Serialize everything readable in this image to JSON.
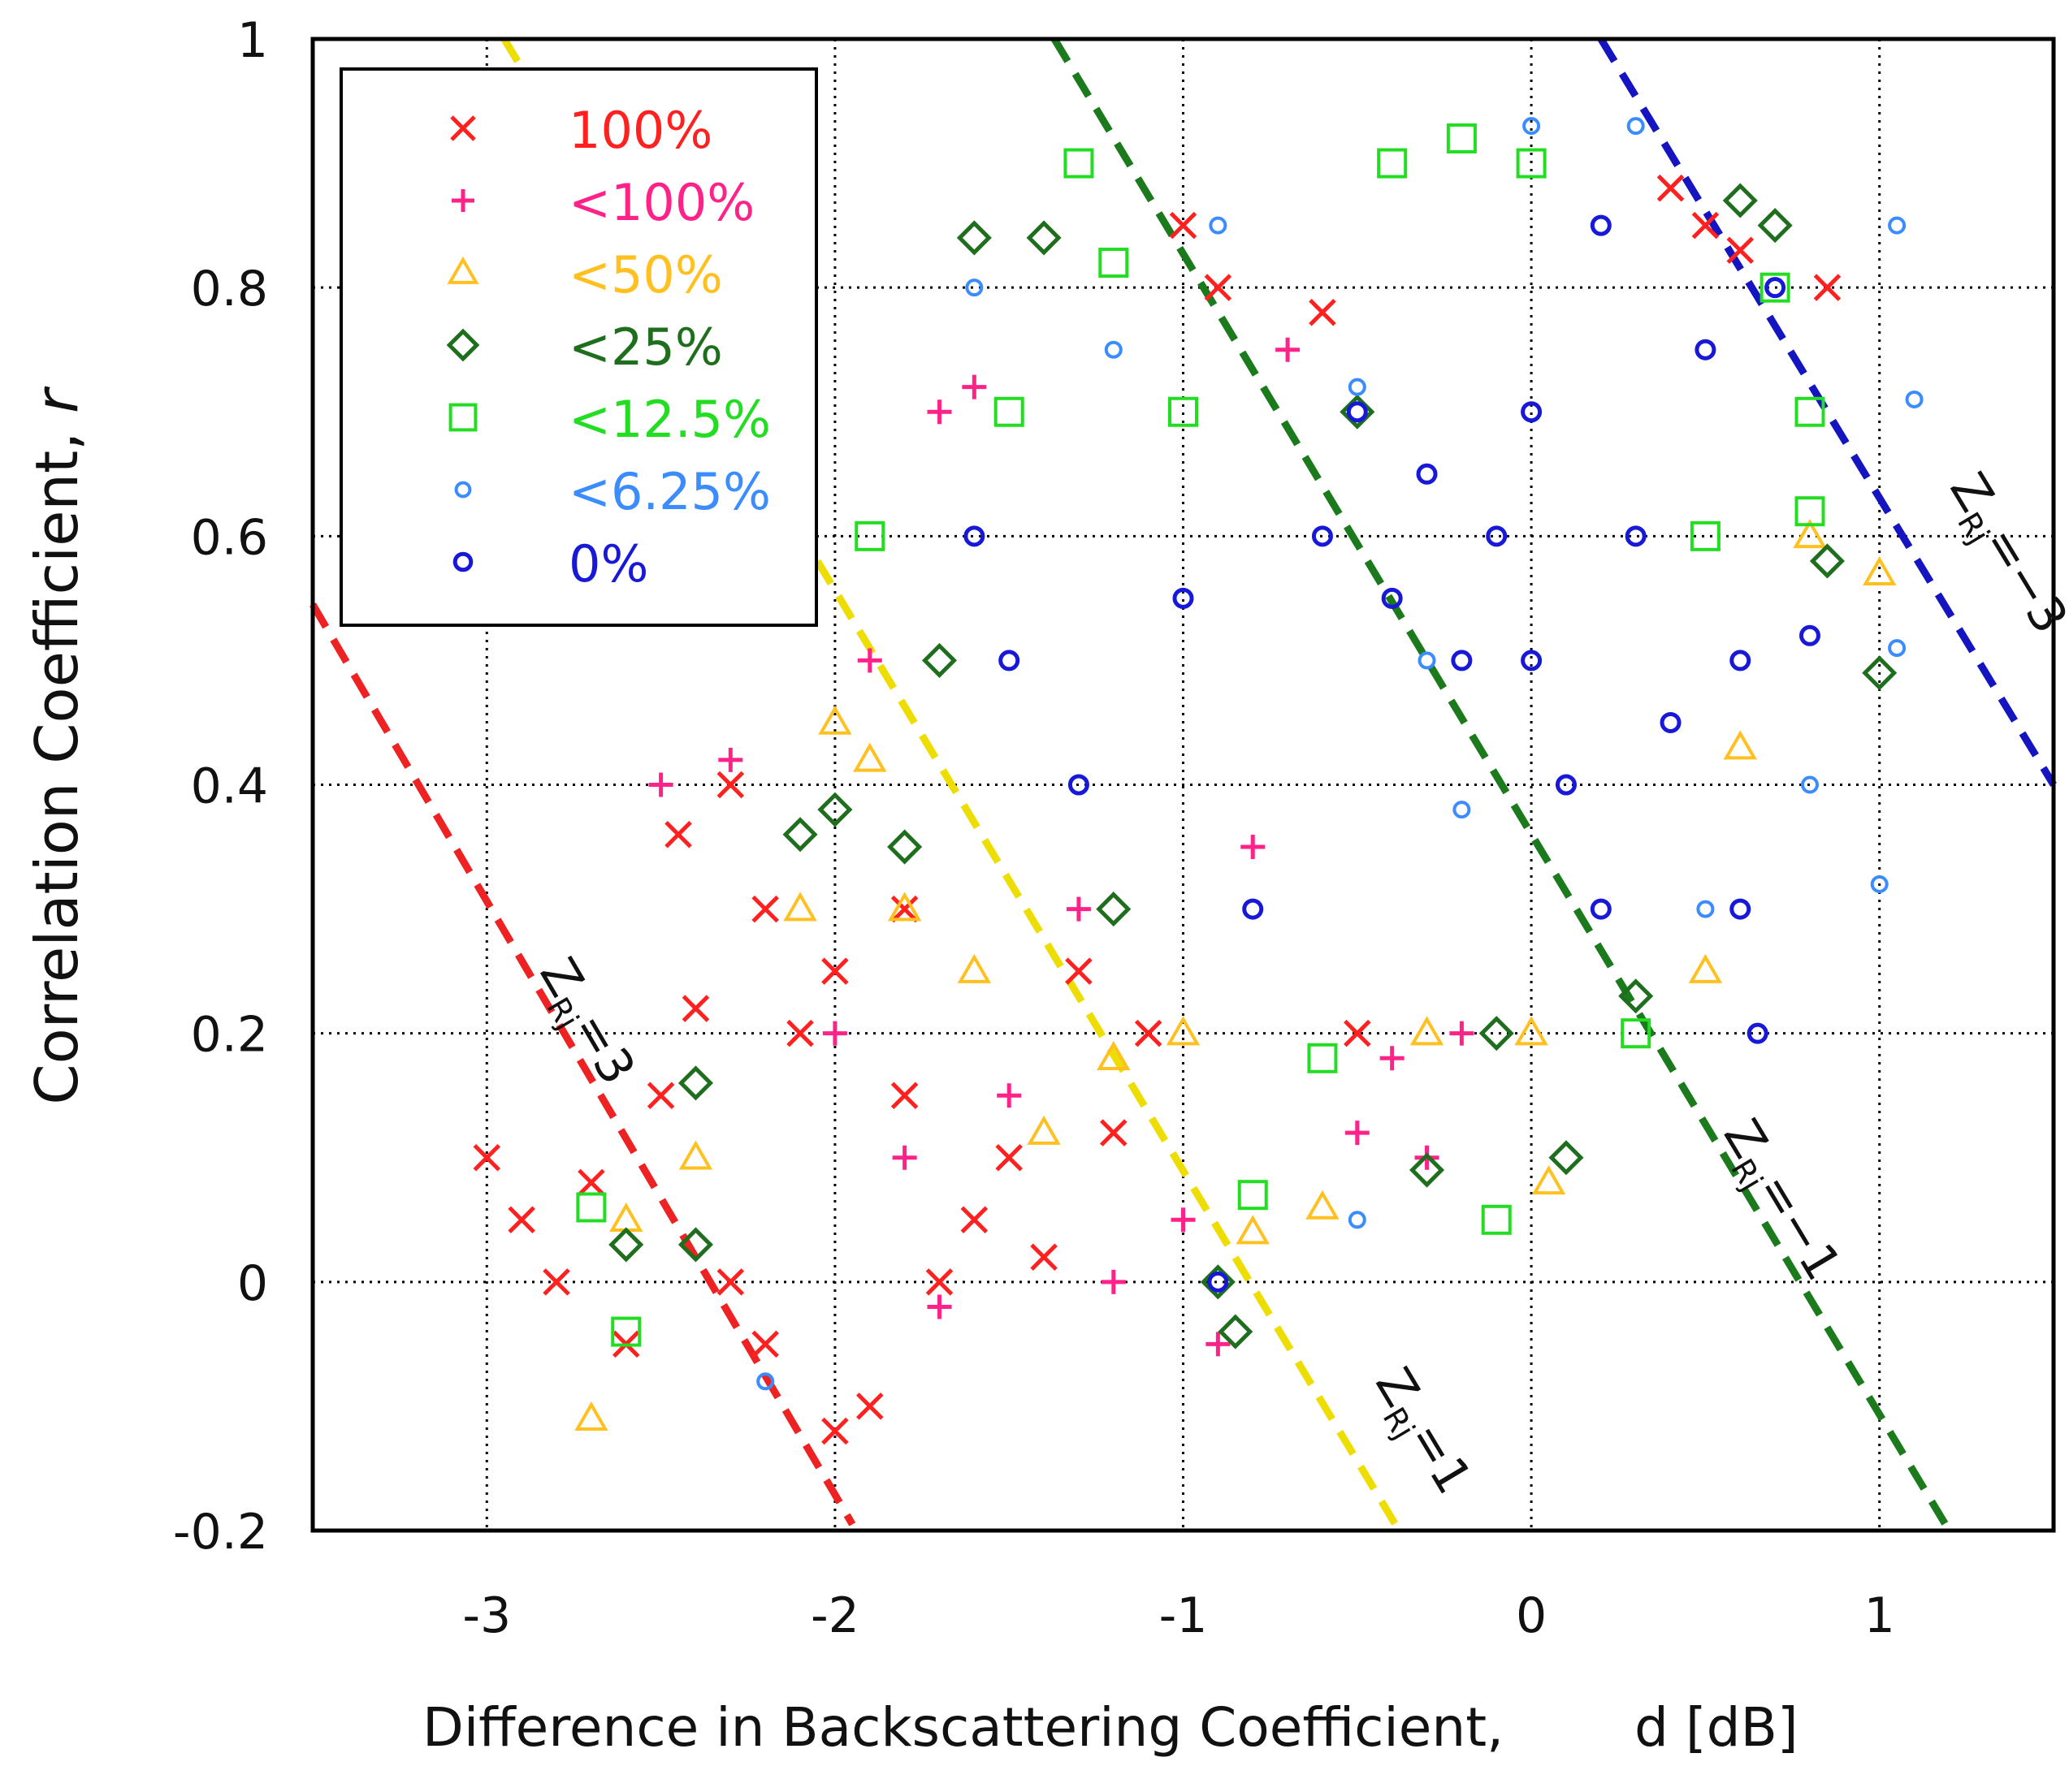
{
  "chart_data": {
    "type": "scatter",
    "title": "",
    "xlabel": "Difference in Backscattering Coefficient,",
    "xlabel_unit": "d [dB]",
    "ylabel": "Correlation Coefficient, ",
    "ylabel_symbol": "r",
    "xlim": [
      -3.5,
      1.5
    ],
    "ylim": [
      -0.2,
      1.0
    ],
    "x_ticks": [
      -3,
      -2,
      -1,
      0,
      1
    ],
    "x_tick_labels": [
      "-3",
      "-2",
      "-1",
      "0",
      "1"
    ],
    "y_ticks": [
      -0.2,
      0,
      0.2,
      0.4,
      0.6,
      0.8,
      1.0
    ],
    "y_tick_labels": [
      "-0.2",
      "0",
      "0.2",
      "0.4",
      "0.6",
      "0.8",
      "1"
    ],
    "grid": true,
    "legend_position": "top-left",
    "series": [
      {
        "name": "100%",
        "marker": "x",
        "color": "#ff2020",
        "points": [
          [
            -3.0,
            0.1
          ],
          [
            -2.9,
            0.05
          ],
          [
            -2.8,
            0.0
          ],
          [
            -2.7,
            0.08
          ],
          [
            -2.6,
            -0.05
          ],
          [
            -2.5,
            0.15
          ],
          [
            -2.45,
            0.36
          ],
          [
            -2.4,
            0.22
          ],
          [
            -2.3,
            0.0
          ],
          [
            -2.3,
            0.4
          ],
          [
            -2.2,
            0.3
          ],
          [
            -2.2,
            -0.05
          ],
          [
            -2.1,
            0.2
          ],
          [
            -2.0,
            -0.12
          ],
          [
            -2.0,
            0.25
          ],
          [
            -1.9,
            -0.1
          ],
          [
            -1.8,
            0.15
          ],
          [
            -1.8,
            0.3
          ],
          [
            -1.7,
            0.0
          ],
          [
            -1.6,
            0.05
          ],
          [
            -1.5,
            0.1
          ],
          [
            -1.4,
            0.02
          ],
          [
            -1.3,
            0.25
          ],
          [
            -1.2,
            0.12
          ],
          [
            -1.1,
            0.2
          ],
          [
            -1.0,
            0.85
          ],
          [
            -0.9,
            0.8
          ],
          [
            -0.6,
            0.78
          ],
          [
            -0.5,
            0.2
          ],
          [
            0.4,
            0.88
          ],
          [
            0.5,
            0.85
          ],
          [
            0.6,
            0.83
          ],
          [
            0.85,
            0.8
          ]
        ]
      },
      {
        "name": "<100%",
        "marker": "+",
        "color": "#ff2288",
        "points": [
          [
            -2.5,
            0.4
          ],
          [
            -2.3,
            0.42
          ],
          [
            -2.0,
            0.2
          ],
          [
            -1.9,
            0.5
          ],
          [
            -1.8,
            0.1
          ],
          [
            -1.7,
            -0.02
          ],
          [
            -1.7,
            0.7
          ],
          [
            -1.6,
            0.72
          ],
          [
            -1.5,
            0.15
          ],
          [
            -1.3,
            0.3
          ],
          [
            -1.2,
            0.0
          ],
          [
            -1.0,
            0.05
          ],
          [
            -0.9,
            -0.05
          ],
          [
            -0.8,
            0.35
          ],
          [
            -0.7,
            0.75
          ],
          [
            -0.5,
            0.12
          ],
          [
            -0.4,
            0.18
          ],
          [
            -0.3,
            0.1
          ],
          [
            -0.2,
            0.2
          ]
        ]
      },
      {
        "name": "<50%",
        "marker": "triangle",
        "color": "#ffc020",
        "points": [
          [
            -2.7,
            -0.11
          ],
          [
            -2.6,
            0.05
          ],
          [
            -2.4,
            0.1
          ],
          [
            -2.1,
            0.3
          ],
          [
            -2.0,
            0.45
          ],
          [
            -1.9,
            0.42
          ],
          [
            -1.8,
            0.3
          ],
          [
            -1.6,
            0.25
          ],
          [
            -1.4,
            0.12
          ],
          [
            -1.2,
            0.18
          ],
          [
            -1.0,
            0.2
          ],
          [
            -0.8,
            0.04
          ],
          [
            -0.6,
            0.06
          ],
          [
            -0.3,
            0.2
          ],
          [
            0.0,
            0.2
          ],
          [
            0.05,
            0.08
          ],
          [
            0.5,
            0.25
          ],
          [
            0.6,
            0.43
          ],
          [
            0.8,
            0.6
          ],
          [
            1.0,
            0.57
          ]
        ]
      },
      {
        "name": "<25%",
        "marker": "diamond",
        "color": "#1e6e1e",
        "points": [
          [
            -2.6,
            0.03
          ],
          [
            -2.4,
            0.03
          ],
          [
            -2.4,
            0.16
          ],
          [
            -2.1,
            0.36
          ],
          [
            -2.0,
            0.38
          ],
          [
            -1.8,
            0.35
          ],
          [
            -1.7,
            0.5
          ],
          [
            -1.6,
            0.84
          ],
          [
            -1.4,
            0.84
          ],
          [
            -1.2,
            0.3
          ],
          [
            -0.9,
            0.0
          ],
          [
            -0.85,
            -0.04
          ],
          [
            -0.5,
            0.7
          ],
          [
            -0.3,
            0.09
          ],
          [
            -0.1,
            0.2
          ],
          [
            0.1,
            0.1
          ],
          [
            0.3,
            0.23
          ],
          [
            0.6,
            0.87
          ],
          [
            0.7,
            0.85
          ],
          [
            0.85,
            0.58
          ],
          [
            1.0,
            0.49
          ]
        ]
      },
      {
        "name": "<12.5%",
        "marker": "square",
        "color": "#22dd22",
        "points": [
          [
            -2.7,
            0.06
          ],
          [
            -2.6,
            -0.04
          ],
          [
            -1.9,
            0.6
          ],
          [
            -1.5,
            0.7
          ],
          [
            -1.3,
            0.9
          ],
          [
            -1.2,
            0.82
          ],
          [
            -1.0,
            0.7
          ],
          [
            -0.8,
            0.07
          ],
          [
            -0.6,
            0.18
          ],
          [
            -0.4,
            0.9
          ],
          [
            -0.2,
            0.92
          ],
          [
            -0.1,
            0.05
          ],
          [
            0.0,
            0.9
          ],
          [
            0.3,
            0.2
          ],
          [
            0.5,
            0.6
          ],
          [
            0.7,
            0.8
          ],
          [
            0.8,
            0.7
          ],
          [
            0.8,
            0.62
          ]
        ]
      },
      {
        "name": "<6.25%",
        "marker": "circle-small",
        "color": "#3a8cff",
        "points": [
          [
            -2.2,
            -0.08
          ],
          [
            -1.6,
            0.8
          ],
          [
            -1.2,
            0.75
          ],
          [
            -0.9,
            0.85
          ],
          [
            -0.5,
            0.72
          ],
          [
            -0.3,
            0.5
          ],
          [
            -0.2,
            0.38
          ],
          [
            0.0,
            0.93
          ],
          [
            0.3,
            0.93
          ],
          [
            0.5,
            0.3
          ],
          [
            0.8,
            0.4
          ],
          [
            1.0,
            0.32
          ],
          [
            1.05,
            0.85
          ],
          [
            1.1,
            0.71
          ],
          [
            1.05,
            0.51
          ],
          [
            -0.5,
            0.05
          ]
        ]
      },
      {
        "name": "0%",
        "marker": "circle",
        "color": "#1818d8",
        "points": [
          [
            -1.6,
            0.6
          ],
          [
            -1.5,
            0.5
          ],
          [
            -1.3,
            0.4
          ],
          [
            -1.0,
            0.55
          ],
          [
            -0.8,
            0.3
          ],
          [
            -0.6,
            0.6
          ],
          [
            -0.5,
            0.7
          ],
          [
            -0.4,
            0.55
          ],
          [
            -0.3,
            0.65
          ],
          [
            -0.2,
            0.5
          ],
          [
            -0.1,
            0.6
          ],
          [
            0.0,
            0.7
          ],
          [
            0.0,
            0.5
          ],
          [
            0.1,
            0.4
          ],
          [
            0.2,
            0.85
          ],
          [
            0.2,
            0.3
          ],
          [
            0.3,
            0.6
          ],
          [
            0.4,
            0.45
          ],
          [
            0.5,
            0.75
          ],
          [
            0.6,
            0.3
          ],
          [
            0.65,
            0.2
          ],
          [
            -0.9,
            0.0
          ],
          [
            0.6,
            0.5
          ],
          [
            0.7,
            0.8
          ],
          [
            0.8,
            0.52
          ]
        ]
      }
    ],
    "annotations": [
      {
        "label_main": "Z",
        "label_sub": "Rj",
        "label_eq": "=3",
        "color": "#ee2222",
        "line": [
          [
            -3.5,
            0.545
          ],
          [
            -1.95,
            -0.195
          ]
        ]
      },
      {
        "label_main": "Z",
        "label_sub": "Rj",
        "label_eq": "=1",
        "color": "#eedd00",
        "line": [
          [
            -2.95,
            1.0
          ],
          [
            -0.38,
            -0.2
          ]
        ]
      },
      {
        "label_main": "Z",
        "label_sub": "Rj",
        "label_eq": "=−1",
        "color": "#1b7a1b",
        "line": [
          [
            -1.37,
            1.0
          ],
          [
            1.2,
            -0.2
          ]
        ]
      },
      {
        "label_main": "Z",
        "label_sub": "Rj",
        "label_eq": "=−3",
        "color": "#1414c0",
        "line": [
          [
            0.2,
            1.0
          ],
          [
            1.5,
            0.4
          ]
        ]
      }
    ]
  }
}
